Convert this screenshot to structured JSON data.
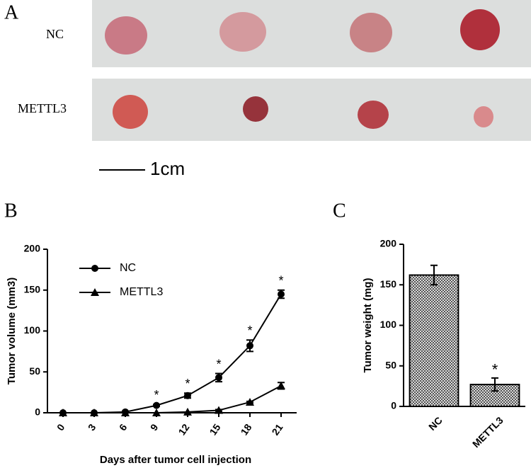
{
  "photo": {
    "panel_label": "A",
    "rows": [
      "NC",
      "METTL3"
    ],
    "scale_bar": "1cm"
  },
  "chart_data": [
    {
      "type": "line",
      "panel_label": "B",
      "x_label": "Days after tumor cell injection",
      "y_label": "Tumor volume (mm3)",
      "x": [
        0,
        3,
        6,
        9,
        12,
        15,
        18,
        21
      ],
      "xlim": [
        -1.5,
        22.5
      ],
      "xticks": [
        0,
        3,
        6,
        9,
        12,
        15,
        18,
        21
      ],
      "ylim": [
        0,
        200
      ],
      "yticks": [
        0,
        50,
        100,
        150,
        200
      ],
      "series": [
        {
          "name": "NC",
          "color": "#000000",
          "marker": "circle",
          "values": [
            0,
            0,
            1,
            9,
            21,
            43,
            82,
            145
          ],
          "errors": [
            0,
            0,
            1,
            1,
            3,
            5,
            7,
            5
          ]
        },
        {
          "name": "METTL3",
          "color": "#000000",
          "marker": "triangle",
          "values": [
            0,
            0,
            0,
            0,
            1,
            3,
            13,
            33
          ],
          "errors": [
            0,
            0,
            0,
            0,
            0,
            1,
            1,
            4
          ]
        }
      ],
      "annotations": [
        null,
        null,
        null,
        "*",
        "*",
        "*",
        "*",
        "*"
      ],
      "legend": "upper-left"
    },
    {
      "type": "bar",
      "panel_label": "C",
      "y_label": "Tumor weight (mg)",
      "categories": [
        "NC",
        "METTL3"
      ],
      "values": [
        162,
        27
      ],
      "errors": [
        12,
        8
      ],
      "color": "#000000",
      "annotations": [
        null,
        "*"
      ],
      "ylim": [
        0,
        200
      ],
      "yticks": [
        0,
        50,
        100,
        150,
        200
      ]
    }
  ]
}
